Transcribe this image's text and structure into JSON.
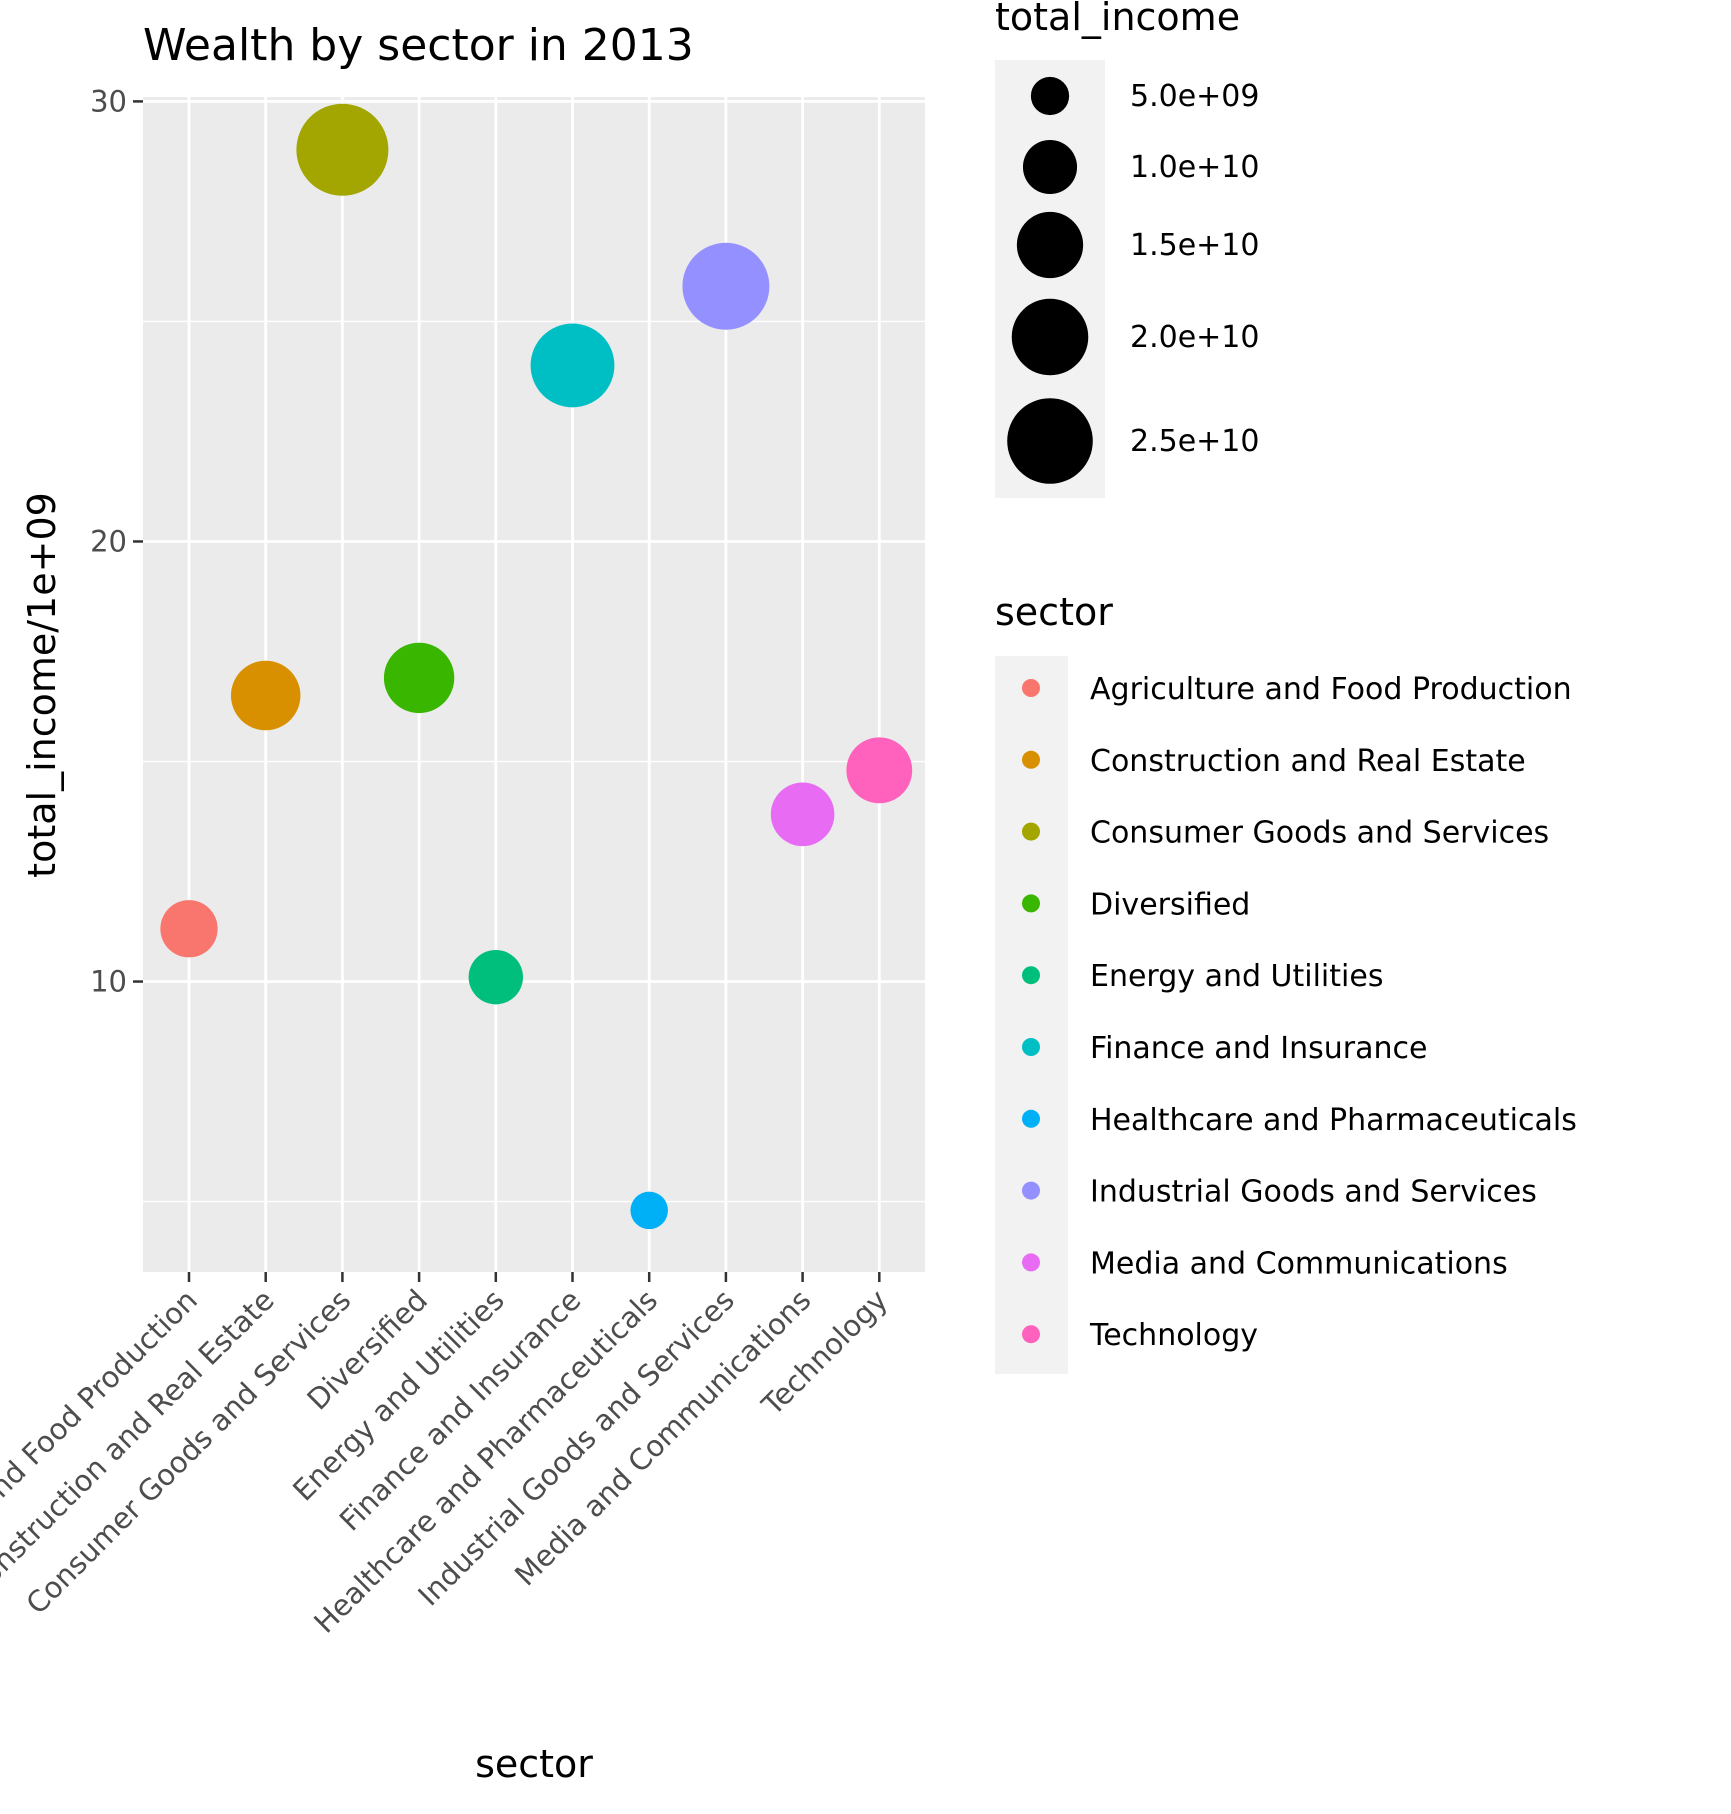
{
  "chart_data": {
    "type": "scatter",
    "title": "Wealth by sector in 2013",
    "xlabel": "sector",
    "ylabel": "total_income/1e+09",
    "ylim": [
      3.4,
      30.1
    ],
    "yticks": [
      10,
      20,
      30
    ],
    "grid": true,
    "categories": [
      "Agriculture and Food Production",
      "Construction and Real Estate",
      "Consumer Goods and Services",
      "Diversified",
      "Energy and Utilities",
      "Finance and Insurance",
      "Healthcare and Pharmaceuticals",
      "Industrial Goods and Services",
      "Media and Communications",
      "Technology"
    ],
    "values": [
      11.2,
      16.5,
      28.9,
      16.9,
      10.1,
      24.0,
      4.8,
      25.8,
      13.8,
      14.8
    ],
    "colors": [
      "#F8766D",
      "#D89000",
      "#A3A500",
      "#39B600",
      "#00BF7D",
      "#00BFC4",
      "#00B0F6",
      "#9590FF",
      "#E76BF3",
      "#FF62BC"
    ],
    "size_legend": {
      "title": "total_income",
      "breaks": [
        5000000000,
        10000000000,
        15000000000,
        20000000000,
        25000000000
      ],
      "labels": [
        "5.0e+09",
        "1.0e+10",
        "1.5e+10",
        "2.0e+10",
        "2.5e+10"
      ]
    },
    "color_legend": {
      "title": "sector",
      "position": "right"
    }
  }
}
